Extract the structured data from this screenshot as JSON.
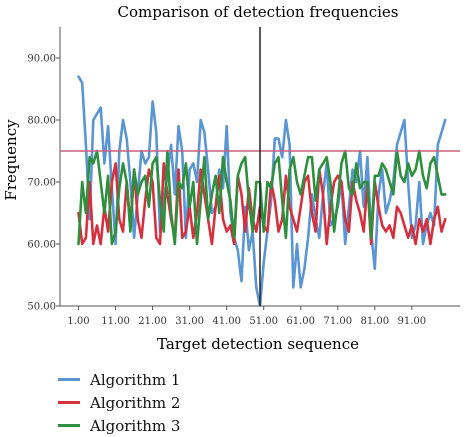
{
  "chart_data": {
    "type": "line",
    "title": "Comparison of detection frequencies",
    "xlabel": "Target detection sequence",
    "ylabel": "Frequency",
    "xlim": [
      -4,
      104
    ],
    "ylim": [
      50,
      95
    ],
    "xticks": [
      1,
      11,
      21,
      31,
      41,
      51,
      61,
      71,
      81,
      91
    ],
    "xtick_labels": [
      "1.00",
      "11.00",
      "21.00",
      "31.00",
      "41.00",
      "51.00",
      "61.00",
      "71.00",
      "81.00",
      "91.00"
    ],
    "yticks": [
      50,
      60,
      70,
      80,
      90
    ],
    "ytick_labels": [
      "50.00",
      "60.00",
      "70.00",
      "80.00",
      "90.00"
    ],
    "grid": false,
    "legend_position": "bottom-left",
    "reference_lines": [
      {
        "orientation": "horizontal",
        "value": 75,
        "color": "#c9607a"
      },
      {
        "orientation": "vertical",
        "value": 50,
        "color": "#222222"
      }
    ],
    "x": [
      1,
      2,
      3,
      4,
      5,
      6,
      7,
      8,
      9,
      10,
      11,
      12,
      13,
      14,
      15,
      16,
      17,
      18,
      19,
      20,
      21,
      22,
      23,
      24,
      25,
      26,
      27,
      28,
      29,
      30,
      31,
      32,
      33,
      34,
      35,
      36,
      37,
      38,
      39,
      40,
      41,
      42,
      43,
      44,
      45,
      46,
      47,
      48,
      49,
      50,
      51,
      52,
      53,
      54,
      55,
      56,
      57,
      58,
      59,
      60,
      61,
      62,
      63,
      64,
      65,
      66,
      67,
      68,
      69,
      70,
      71,
      72,
      73,
      74,
      75,
      76,
      77,
      78,
      79,
      80,
      81,
      82,
      83,
      84,
      85,
      86,
      87,
      88,
      89,
      90,
      91,
      92,
      93,
      94,
      95,
      96,
      97,
      98,
      99,
      100
    ],
    "series": [
      {
        "name": "Algorithm 1",
        "color": "#5b95d2",
        "values": [
          87,
          86,
          76,
          64,
          80,
          81,
          82,
          73,
          79,
          69,
          60,
          75,
          80,
          77,
          70,
          61,
          68,
          75,
          73,
          74,
          83,
          78,
          62,
          67,
          71,
          76,
          68,
          79,
          75,
          61,
          72,
          73,
          70,
          80,
          78,
          72,
          65,
          66,
          72,
          69,
          79,
          65,
          61,
          59,
          54,
          66,
          59,
          62,
          53,
          50,
          57,
          62,
          67,
          77,
          77,
          74,
          80,
          76,
          53,
          60,
          53,
          56,
          61,
          68,
          64,
          61,
          68,
          73,
          63,
          64,
          66,
          70,
          60,
          66,
          72,
          70,
          75,
          66,
          74,
          62,
          56,
          68,
          72,
          65,
          67,
          70,
          76,
          78,
          80,
          70,
          61,
          63,
          70,
          60,
          63,
          65,
          63,
          76,
          78,
          80
        ]
      },
      {
        "name": "Algorithm 2",
        "color": "#d43140",
        "values": [
          65,
          60,
          61,
          70,
          60,
          63,
          60,
          66,
          62,
          70,
          73,
          64,
          62,
          70,
          63,
          72,
          64,
          61,
          67,
          72,
          70,
          61,
          60,
          73,
          68,
          64,
          61,
          72,
          61,
          62,
          66,
          61,
          65,
          72,
          68,
          64,
          60,
          66,
          71,
          64,
          62,
          63,
          60,
          71,
          68,
          62,
          69,
          64,
          62,
          66,
          63,
          62,
          70,
          67,
          62,
          64,
          71,
          66,
          64,
          62,
          66,
          70,
          71,
          65,
          62,
          72,
          68,
          60,
          66,
          70,
          71,
          70,
          64,
          62,
          70,
          67,
          65,
          62,
          70,
          60,
          70,
          66,
          63,
          62,
          63,
          61,
          66,
          65,
          63,
          61,
          63,
          60,
          64,
          62,
          64,
          60,
          64,
          66,
          62,
          64
        ]
      },
      {
        "name": "Algorithm 3",
        "color": "#2f8f3e",
        "values": [
          60,
          70,
          65,
          74,
          73,
          75,
          70,
          65,
          71,
          60,
          62,
          69,
          73,
          70,
          62,
          72,
          68,
          70,
          71,
          66,
          73,
          74,
          67,
          62,
          75,
          65,
          60,
          70,
          69,
          73,
          66,
          70,
          60,
          67,
          74,
          64,
          68,
          71,
          65,
          74,
          70,
          67,
          61,
          71,
          73,
          74,
          67,
          62,
          70,
          70,
          62,
          70,
          69,
          73,
          74,
          67,
          61,
          72,
          74,
          70,
          68,
          71,
          74,
          74,
          67,
          72,
          73,
          74,
          70,
          62,
          67,
          73,
          75,
          69,
          68,
          73,
          69,
          70,
          70,
          61,
          71,
          71,
          73,
          72,
          70,
          68,
          75,
          71,
          70,
          73,
          71,
          72,
          75,
          71,
          69,
          73,
          74,
          71,
          68,
          68
        ]
      }
    ]
  }
}
